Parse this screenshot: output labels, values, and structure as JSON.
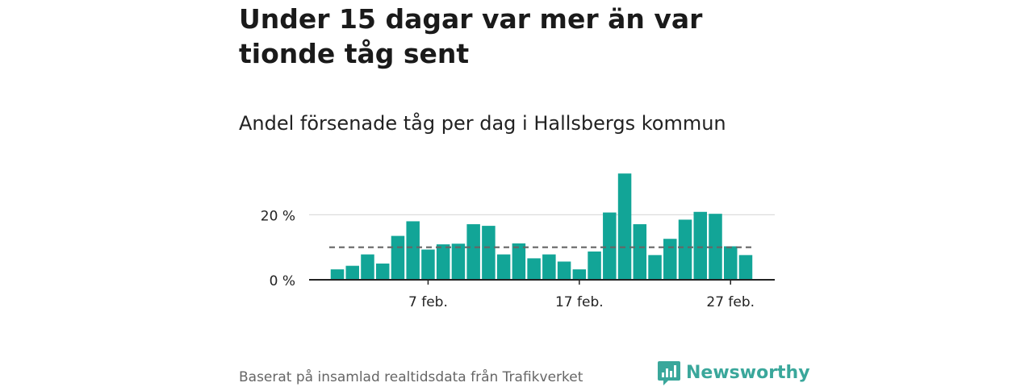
{
  "header": {
    "title": "Under 15 dagar var mer än var tionde tåg sent",
    "subtitle": "Andel försenade tåg per dag i Hallsbergs kommun"
  },
  "footer": {
    "source": "Baserat på insamlad realtidsdata från Trafikverket",
    "brand": "Newsworthy"
  },
  "colors": {
    "bar": "#12a597",
    "reference_line": "#666666",
    "grid": "#dddddd",
    "brand": "#3aa79b"
  },
  "chart_data": {
    "type": "bar",
    "title": "Andel försenade tåg per dag i Hallsbergs kommun",
    "xlabel": "",
    "ylabel": "",
    "x": [
      "1 feb.",
      "2 feb.",
      "3 feb.",
      "4 feb.",
      "5 feb.",
      "6 feb.",
      "7 feb.",
      "8 feb.",
      "9 feb.",
      "10 feb.",
      "11 feb.",
      "12 feb.",
      "13 feb.",
      "14 feb.",
      "15 feb.",
      "16 feb.",
      "17 feb.",
      "18 feb.",
      "19 feb.",
      "20 feb.",
      "21 feb.",
      "22 feb.",
      "23 feb.",
      "24 feb.",
      "25 feb.",
      "26 feb.",
      "27 feb.",
      "28 feb."
    ],
    "values": [
      3.2,
      4.3,
      7.8,
      5.0,
      13.5,
      18.0,
      9.3,
      10.9,
      11.1,
      17.1,
      16.6,
      7.8,
      11.2,
      6.6,
      7.8,
      5.6,
      3.2,
      8.7,
      20.7,
      32.7,
      17.1,
      7.6,
      12.6,
      18.5,
      20.9,
      20.3,
      10.3,
      7.6
    ],
    "y_unit": "%",
    "ylim": [
      0,
      33
    ],
    "y_ticks": [
      0,
      20
    ],
    "y_tick_labels": [
      "0 %",
      "20 %"
    ],
    "x_tick_labels": [
      "7 feb.",
      "17 feb.",
      "27 feb."
    ],
    "x_tick_indices": [
      6,
      16,
      26
    ],
    "reference_line": 10,
    "grid": true
  }
}
